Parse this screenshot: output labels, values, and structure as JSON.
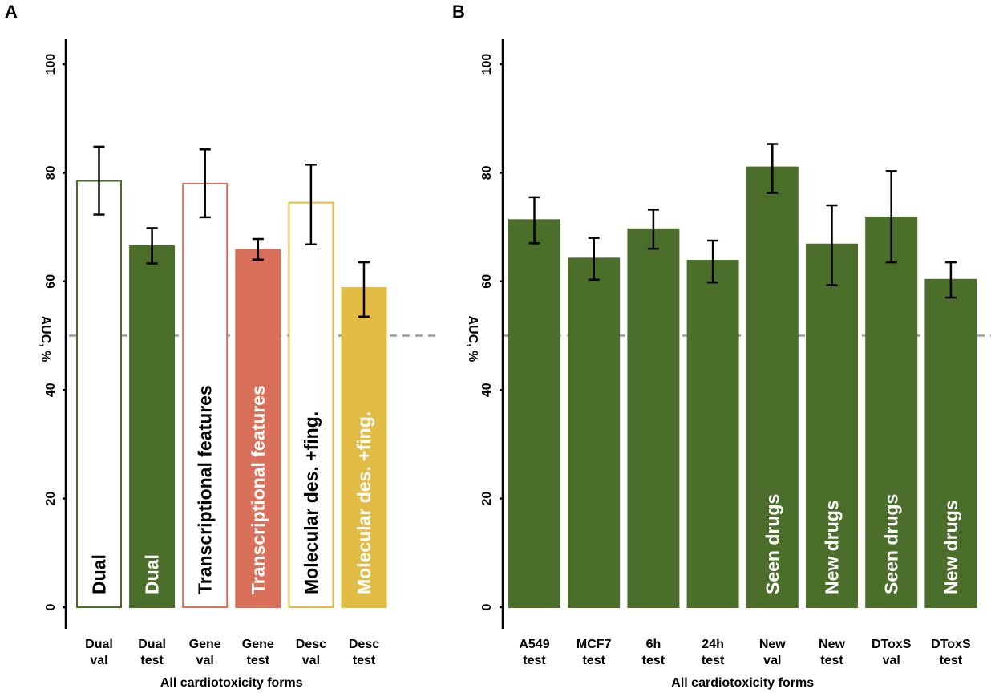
{
  "colors": {
    "green": "#4b6e2a",
    "red": "#d8705a",
    "yellow": "#e2bc45",
    "white": "#ffffff",
    "black": "#000000",
    "reference_line": "#9e9e9e"
  },
  "chart_data": [
    {
      "type": "bar",
      "panel": "A",
      "xlabel": "All cardiotoxicity forms",
      "ylabel": "AUC, %",
      "ylim": [
        0,
        100
      ],
      "yticks": [
        0,
        20,
        40,
        60,
        80,
        100
      ],
      "reference_line": 50,
      "categories": [
        [
          "Dual",
          "val"
        ],
        [
          "Dual",
          "test"
        ],
        [
          "Gene",
          "val"
        ],
        [
          "Gene",
          "test"
        ],
        [
          "Desc",
          "val"
        ],
        [
          "Desc",
          "test"
        ]
      ],
      "values": [
        78.5,
        66.5,
        78,
        65.8,
        74.5,
        58.8
      ],
      "error_low": [
        72.3,
        63.3,
        71.8,
        64.0,
        66.8,
        53.5
      ],
      "error_high": [
        84.8,
        69.8,
        84.3,
        67.8,
        81.5,
        63.5
      ],
      "fill": [
        "white",
        "green",
        "white",
        "red",
        "white",
        "yellow"
      ],
      "stroke": [
        "green",
        "green",
        "red",
        "red",
        "yellow",
        "yellow"
      ],
      "text_color": [
        "black",
        "white",
        "black",
        "white",
        "black",
        "white"
      ],
      "bar_labels": [
        "Dual",
        "Dual",
        "Transcriptional features",
        "Transcriptional features",
        "Molecular des. +fing.",
        "Molecular des. +fing."
      ]
    },
    {
      "type": "bar",
      "panel": "B",
      "xlabel": "All cardiotoxicity forms",
      "ylabel": "AUC, %",
      "ylim": [
        0,
        100
      ],
      "yticks": [
        0,
        20,
        40,
        60,
        80,
        100
      ],
      "reference_line": 50,
      "categories": [
        [
          "A549",
          "test"
        ],
        [
          "MCF7",
          "test"
        ],
        [
          "6h",
          "test"
        ],
        [
          "24h",
          "test"
        ],
        [
          "New",
          "val"
        ],
        [
          "New",
          "test"
        ],
        [
          "DToxS",
          "val"
        ],
        [
          "DToxS",
          "test"
        ]
      ],
      "values": [
        71.3,
        64.2,
        69.6,
        63.8,
        81,
        66.8,
        71.8,
        60.3
      ],
      "error_low": [
        67.0,
        60.3,
        66.0,
        59.8,
        76.3,
        59.3,
        63.5,
        57.0
      ],
      "error_high": [
        75.5,
        68.0,
        73.2,
        67.5,
        85.3,
        74.0,
        80.3,
        63.5
      ],
      "fill": [
        "green",
        "green",
        "green",
        "green",
        "green",
        "green",
        "green",
        "green"
      ],
      "stroke": [
        "green",
        "green",
        "green",
        "green",
        "green",
        "green",
        "green",
        "green"
      ],
      "text_color": [
        "white",
        "white",
        "white",
        "white",
        "white",
        "white",
        "white",
        "white"
      ],
      "bar_labels": [
        "",
        "",
        "",
        "",
        "Seen drugs",
        "New drugs",
        "Seen drugs",
        "New drugs"
      ]
    }
  ]
}
